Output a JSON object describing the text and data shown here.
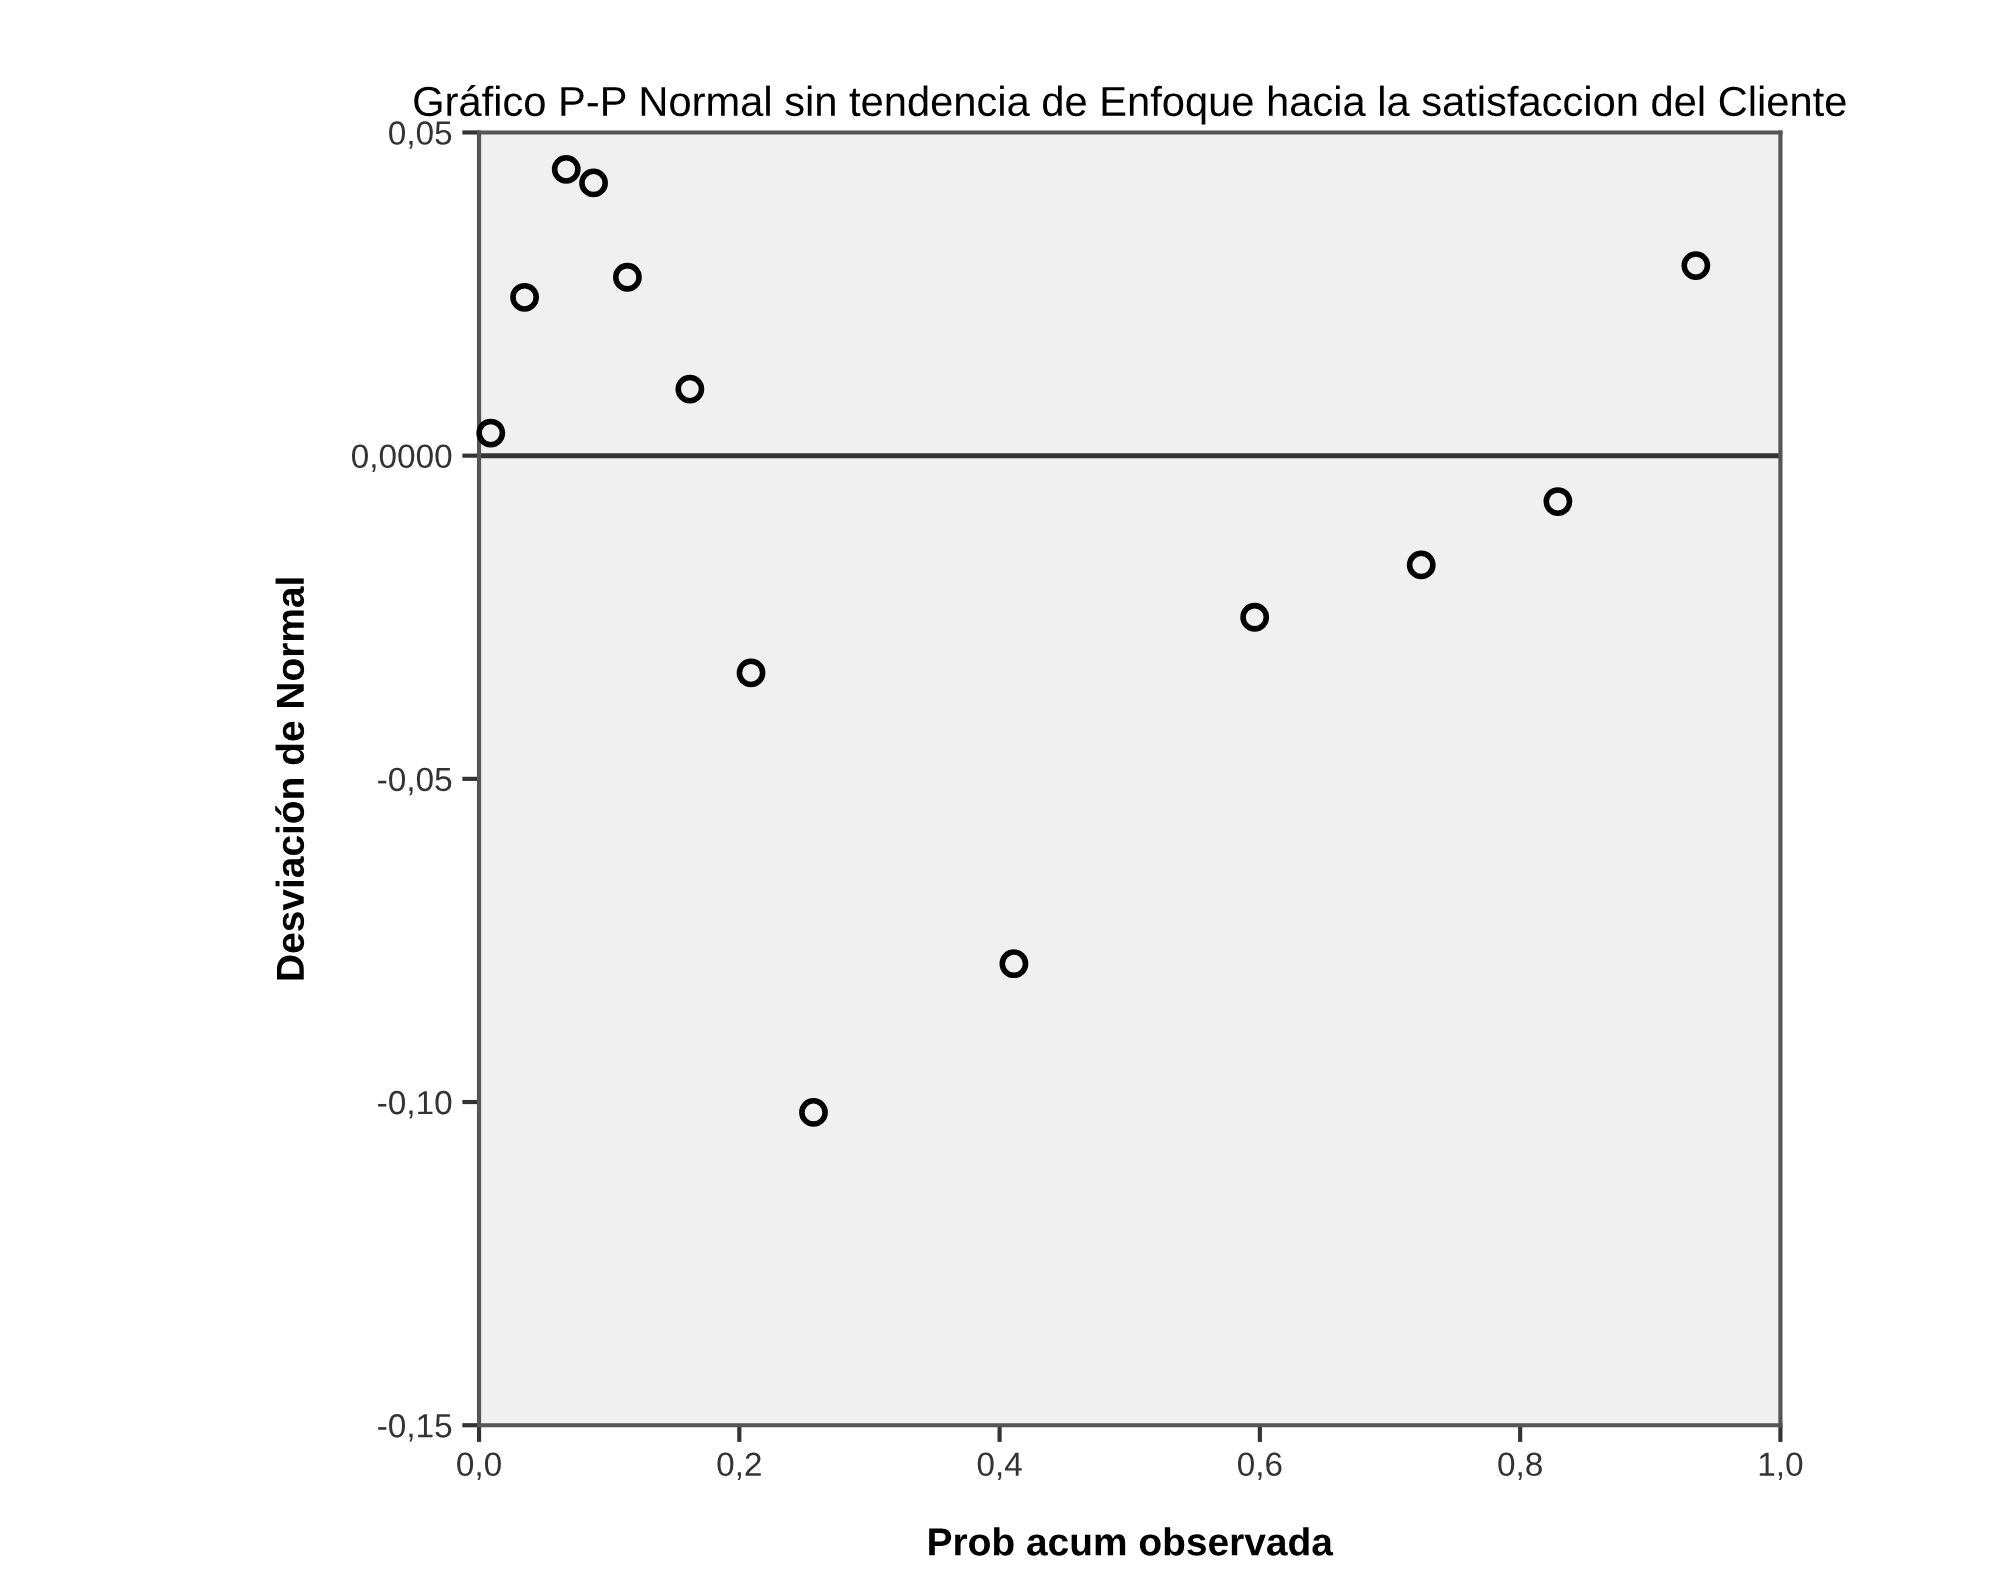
{
  "chart_data": {
    "type": "scatter",
    "title": "Gráfico P-P Normal sin tendencia de Enfoque hacia la satisfaccion del Cliente",
    "xlabel": "Prob acum observada",
    "ylabel": "Desviación de Normal",
    "x": [
      0.009,
      0.035,
      0.067,
      0.088,
      0.114,
      0.162,
      0.209,
      0.257,
      0.411,
      0.596,
      0.724,
      0.829,
      0.935
    ],
    "values": [
      0.0035,
      0.0245,
      0.0443,
      0.0422,
      0.0276,
      0.0103,
      -0.0336,
      -0.1016,
      -0.0786,
      -0.025,
      -0.0169,
      -0.0071,
      0.0294
    ],
    "color": "#000000",
    "marker": "circle",
    "xlim": [
      0,
      1
    ],
    "ylim": [
      -0.15,
      0.05
    ],
    "xticks": [
      {
        "value": 0,
        "label": "0,0"
      },
      {
        "value": 0.2,
        "label": "0,2"
      },
      {
        "value": 0.4,
        "label": "0,4"
      },
      {
        "value": 0.6,
        "label": "0,6"
      },
      {
        "value": 0.8,
        "label": "0,8"
      },
      {
        "value": 1,
        "label": "1,0"
      }
    ],
    "yticks": [
      {
        "value": -0.15,
        "label": "-0,15"
      },
      {
        "value": -0.1,
        "label": "-0,10"
      },
      {
        "value": -0.05,
        "label": "-0,05"
      },
      {
        "value": 0,
        "label": "0,0000"
      },
      {
        "value": 0.05,
        "label": "0,05"
      }
    ],
    "ref_lines": [
      {
        "axis": "y",
        "value": 0,
        "color": "#333333"
      }
    ],
    "grid": false
  }
}
